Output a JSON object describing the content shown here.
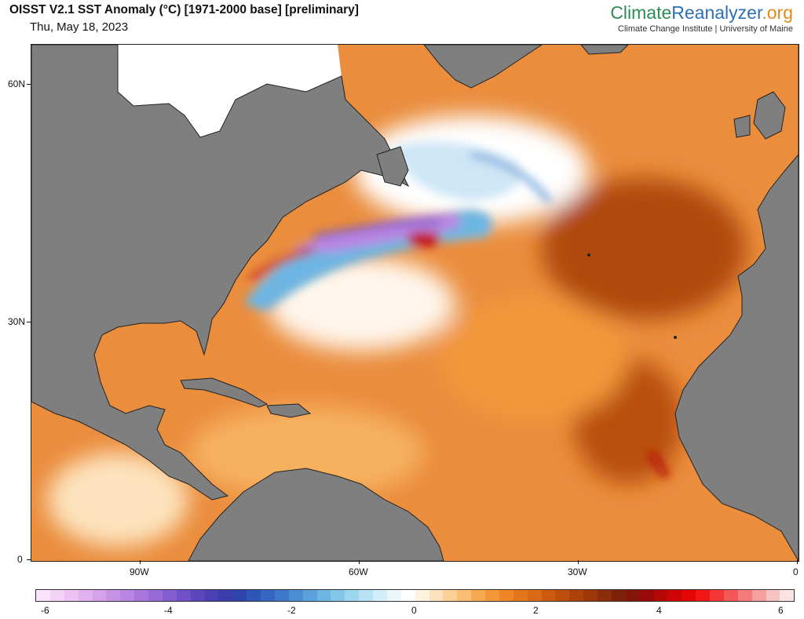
{
  "header": {
    "title": "OISST V2.1 SST Anomaly (°C) [1971-2000 base] [preliminary]",
    "date": "Thu, May 18, 2023",
    "brand_part1": "Climate",
    "brand_part2": "Reanalyzer",
    "brand_part3": ".org",
    "subtitle": "Climate Change Institute | University of Maine"
  },
  "map": {
    "region": "North Atlantic",
    "lat_labels": [
      "60N",
      "30N",
      "0"
    ],
    "lon_labels": [
      "90W",
      "60W",
      "30W",
      "0"
    ],
    "land_color": "#808080",
    "ice_color": "#ffffff"
  },
  "colorbar": {
    "labels": [
      "-6",
      "-4",
      "-2",
      "0",
      "2",
      "4",
      "6"
    ],
    "min": -6,
    "max": 6,
    "colors": [
      "#fbe3fb",
      "#f4d2f6",
      "#ebc2f2",
      "#e0b1ee",
      "#d4a1ea",
      "#c793e6",
      "#b985e2",
      "#a977dc",
      "#976ad6",
      "#845dcf",
      "#7050c7",
      "#5c46be",
      "#4a3fb4",
      "#3a3dab",
      "#2f45ad",
      "#2f55b6",
      "#3566c1",
      "#3f79cb",
      "#4c8ed4",
      "#5ba2dc",
      "#6db5e2",
      "#82c6e8",
      "#9bd5ee",
      "#b6e2f3",
      "#d2eef8",
      "#ecf7fc",
      "#ffffff",
      "#fff3e0",
      "#fde3bd",
      "#fbd198",
      "#f9be74",
      "#f6ab53",
      "#f29839",
      "#ec8627",
      "#e4761b",
      "#d96914",
      "#cc5b10",
      "#bd4e0d",
      "#ad420b",
      "#9c370a",
      "#8b2c0a",
      "#7d2109",
      "#851509",
      "#9a0a0a",
      "#b50707",
      "#cf0505",
      "#e40505",
      "#f01616",
      "#f33535",
      "#f45757",
      "#f57b7b",
      "#f59f9f",
      "#f7c3c3",
      "#fbe3e3"
    ]
  }
}
